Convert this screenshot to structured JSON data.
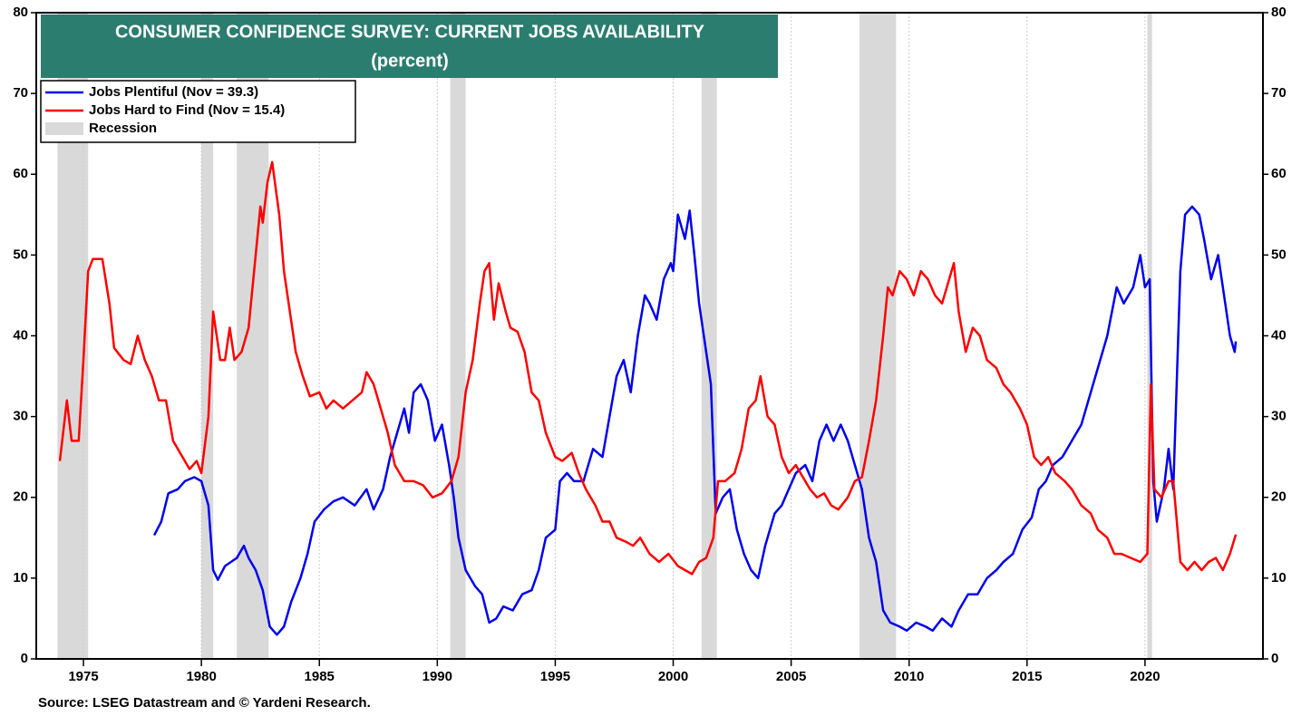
{
  "chart_data": {
    "type": "line",
    "title": "CONSUMER CONFIDENCE SURVEY: CURRENT JOBS AVAILABILITY",
    "subtitle": "(percent)",
    "source": "Source: LSEG Datastream and © Yardeni Research.",
    "xlim": [
      1973,
      2025
    ],
    "xticks": [
      1975,
      1980,
      1985,
      1990,
      1995,
      2000,
      2005,
      2010,
      2015,
      2020
    ],
    "ylim": [
      0,
      80
    ],
    "yticks": [
      0,
      10,
      20,
      30,
      40,
      50,
      60,
      70,
      80
    ],
    "grid": "x",
    "legend": "upper left",
    "recession_name": "Recession",
    "recession_color": "#d9d9d9",
    "recessions": [
      [
        1973.9,
        1975.2
      ],
      [
        1980.0,
        1980.5
      ],
      [
        1981.5,
        1982.85
      ],
      [
        1990.55,
        1991.2
      ],
      [
        2001.2,
        2001.85
      ],
      [
        2007.9,
        2009.45
      ],
      [
        2020.1,
        2020.3
      ]
    ],
    "series": [
      {
        "name": "Jobs Plentiful (Nov = 39.3)",
        "color": "#0000ee",
        "x": [
          1978.0,
          1978.3,
          1978.6,
          1979.0,
          1979.3,
          1979.7,
          1980.0,
          1980.3,
          1980.5,
          1980.7,
          1981.0,
          1981.5,
          1981.8,
          1982.0,
          1982.3,
          1982.6,
          1982.9,
          1983.2,
          1983.5,
          1983.8,
          1984.2,
          1984.5,
          1984.8,
          1985.2,
          1985.6,
          1986.0,
          1986.5,
          1987.0,
          1987.3,
          1987.7,
          1988.0,
          1988.3,
          1988.6,
          1988.8,
          1989.0,
          1989.3,
          1989.6,
          1989.9,
          1990.2,
          1990.5,
          1990.7,
          1990.9,
          1991.2,
          1991.6,
          1991.9,
          1992.2,
          1992.5,
          1992.8,
          1993.2,
          1993.6,
          1994.0,
          1994.3,
          1994.6,
          1995.0,
          1995.2,
          1995.5,
          1995.8,
          1996.2,
          1996.6,
          1997.0,
          1997.3,
          1997.6,
          1997.9,
          1998.2,
          1998.5,
          1998.8,
          1999.0,
          1999.3,
          1999.6,
          1999.9,
          2000.0,
          2000.2,
          2000.5,
          2000.7,
          2000.9,
          2001.1,
          2001.4,
          2001.6,
          2001.8,
          2002.1,
          2002.4,
          2002.7,
          2003.0,
          2003.3,
          2003.6,
          2003.9,
          2004.3,
          2004.6,
          2004.9,
          2005.2,
          2005.6,
          2005.9,
          2006.2,
          2006.5,
          2006.8,
          2007.1,
          2007.4,
          2007.7,
          2008.0,
          2008.3,
          2008.6,
          2008.9,
          2009.2,
          2009.6,
          2009.9,
          2010.3,
          2010.7,
          2011.0,
          2011.4,
          2011.8,
          2012.1,
          2012.5,
          2012.9,
          2013.3,
          2013.7,
          2014.0,
          2014.4,
          2014.8,
          2015.2,
          2015.5,
          2015.8,
          2016.1,
          2016.5,
          2016.9,
          2017.3,
          2017.7,
          2018.0,
          2018.4,
          2018.8,
          2019.1,
          2019.5,
          2019.8,
          2020.0,
          2020.2,
          2020.35,
          2020.5,
          2020.8,
          2021.0,
          2021.2,
          2021.5,
          2021.7,
          2022.0,
          2022.3,
          2022.5,
          2022.8,
          2023.1,
          2023.4,
          2023.6,
          2023.8,
          2023.85
        ],
        "values": [
          15.3,
          17,
          20.5,
          21,
          22,
          22.5,
          22,
          19,
          11,
          9.8,
          11.5,
          12.5,
          14,
          12.5,
          11,
          8.5,
          4,
          3,
          4,
          7,
          10,
          13,
          17,
          18.5,
          19.5,
          20,
          19,
          21,
          18.5,
          21,
          25,
          28,
          31,
          28,
          33,
          34,
          32,
          27,
          29,
          24,
          20,
          15,
          11,
          9,
          8,
          4.5,
          5,
          6.5,
          6,
          8,
          8.5,
          11,
          15,
          16,
          22,
          23,
          22,
          22,
          26,
          25,
          30,
          35,
          37,
          33,
          40,
          45,
          44,
          42,
          47,
          49,
          48,
          55,
          52,
          55.5,
          50,
          44,
          38,
          34,
          18,
          20,
          21,
          16,
          13,
          11,
          10,
          14,
          18,
          19,
          21,
          23,
          24,
          22,
          27,
          29,
          27,
          29,
          27,
          24,
          21,
          15,
          12,
          6,
          4.5,
          4,
          3.5,
          4.5,
          4,
          3.5,
          5,
          4,
          6,
          8,
          8,
          10,
          11,
          12,
          13,
          16,
          17.5,
          21,
          22,
          24,
          25,
          27,
          29,
          33,
          36,
          40,
          46,
          44,
          46,
          50,
          46,
          47,
          22,
          17,
          21,
          26,
          21,
          48,
          55,
          56,
          55,
          52,
          47,
          50,
          44,
          40,
          38,
          39.3
        ]
      },
      {
        "name": "Jobs Hard to Find (Nov = 15.4)",
        "color": "#ff0000",
        "x": [
          1974.0,
          1974.3,
          1974.5,
          1974.8,
          1975.0,
          1975.2,
          1975.4,
          1975.8,
          1976.1,
          1976.3,
          1976.7,
          1977.0,
          1977.3,
          1977.6,
          1977.9,
          1978.2,
          1978.5,
          1978.8,
          1979.2,
          1979.5,
          1979.8,
          1980.0,
          1980.3,
          1980.5,
          1980.8,
          1981.0,
          1981.2,
          1981.4,
          1981.7,
          1982.0,
          1982.3,
          1982.5,
          1982.6,
          1982.8,
          1983.0,
          1983.3,
          1983.5,
          1983.8,
          1984.0,
          1984.3,
          1984.6,
          1985.0,
          1985.3,
          1985.6,
          1986.0,
          1986.4,
          1986.8,
          1987.0,
          1987.3,
          1987.6,
          1987.9,
          1988.2,
          1988.6,
          1989.0,
          1989.4,
          1989.8,
          1990.2,
          1990.6,
          1990.9,
          1991.2,
          1991.5,
          1991.8,
          1992.0,
          1992.2,
          1992.4,
          1992.6,
          1992.9,
          1993.1,
          1993.4,
          1993.7,
          1994.0,
          1994.3,
          1994.6,
          1995.0,
          1995.3,
          1995.7,
          1996.0,
          1996.3,
          1996.7,
          1997.0,
          1997.3,
          1997.6,
          1998.0,
          1998.3,
          1998.6,
          1999.0,
          1999.4,
          1999.8,
          2000.2,
          2000.5,
          2000.8,
          2001.1,
          2001.4,
          2001.7,
          2001.9,
          2002.2,
          2002.6,
          2002.9,
          2003.2,
          2003.5,
          2003.7,
          2004.0,
          2004.3,
          2004.6,
          2004.9,
          2005.2,
          2005.5,
          2005.8,
          2006.1,
          2006.4,
          2006.7,
          2007.0,
          2007.4,
          2007.7,
          2008.0,
          2008.3,
          2008.6,
          2008.9,
          2009.1,
          2009.3,
          2009.6,
          2009.9,
          2010.2,
          2010.5,
          2010.8,
          2011.1,
          2011.4,
          2011.7,
          2011.9,
          2012.1,
          2012.4,
          2012.7,
          2013.0,
          2013.3,
          2013.7,
          2014.0,
          2014.3,
          2014.7,
          2015.0,
          2015.3,
          2015.6,
          2015.9,
          2016.2,
          2016.6,
          2016.9,
          2017.3,
          2017.7,
          2018.0,
          2018.4,
          2018.7,
          2019.0,
          2019.4,
          2019.8,
          2020.1,
          2020.25,
          2020.4,
          2020.7,
          2021.0,
          2021.2,
          2021.5,
          2021.8,
          2022.1,
          2022.4,
          2022.7,
          2023.0,
          2023.3,
          2023.6,
          2023.85
        ],
        "values": [
          24.5,
          32,
          27,
          27,
          37,
          48,
          49.5,
          49.5,
          44,
          38.5,
          37,
          36.5,
          40,
          37,
          35,
          32,
          32,
          27,
          25,
          23.5,
          24.5,
          23,
          30,
          43,
          37,
          37,
          41,
          37,
          38,
          41,
          50,
          56,
          54,
          59,
          61.5,
          55,
          48,
          42,
          38,
          35,
          32.5,
          33,
          31,
          32,
          31,
          32,
          33,
          35.5,
          34,
          31,
          28,
          24,
          22,
          22,
          21.5,
          20,
          20.5,
          22,
          25,
          33,
          37,
          44,
          48,
          49,
          42,
          46.5,
          43,
          41,
          40.5,
          38,
          33,
          32,
          28,
          25,
          24.5,
          25.5,
          23,
          21,
          19,
          17,
          17,
          15,
          14.5,
          14,
          15,
          13,
          12,
          13,
          11.5,
          11,
          10.5,
          12,
          12.5,
          15,
          22,
          22,
          23,
          26,
          31,
          32,
          35,
          30,
          29,
          25,
          23,
          24,
          22.5,
          21,
          20,
          20.5,
          19,
          18.5,
          20,
          22,
          22.5,
          27,
          32,
          40,
          46,
          45,
          48,
          47,
          45,
          48,
          47,
          45,
          44,
          47,
          49,
          43,
          38,
          41,
          40,
          37,
          36,
          34,
          33,
          31,
          29,
          25,
          24,
          25,
          23,
          22,
          21,
          19,
          18,
          16,
          15,
          13,
          13,
          12.5,
          12,
          13,
          34,
          21,
          20,
          22,
          22,
          12,
          11,
          12,
          11,
          12,
          12.5,
          11,
          13,
          15.4
        ]
      }
    ]
  }
}
